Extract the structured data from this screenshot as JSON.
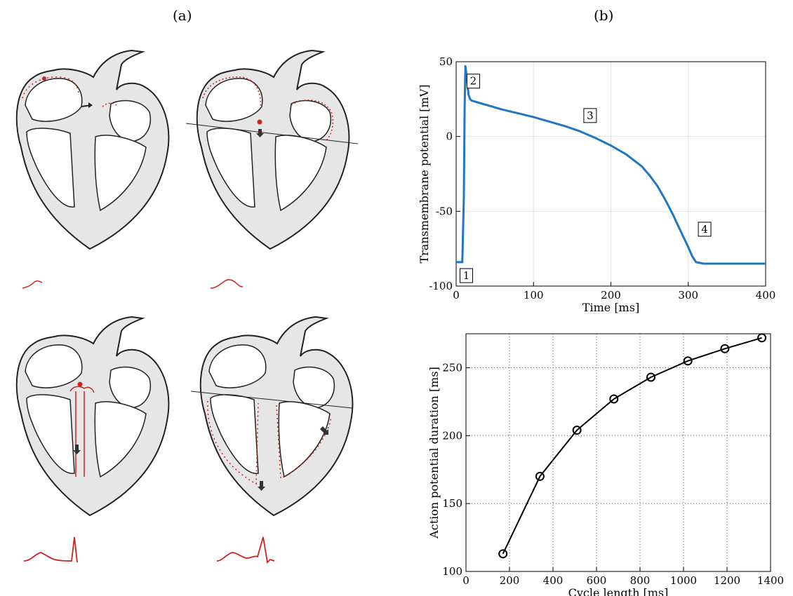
{
  "figure": {
    "panel_a_label": "(a)",
    "panel_b_label": "(b)"
  },
  "illustration": {
    "description_icons": [
      "heart-diagram-icon",
      "ecg-trace-icon"
    ],
    "colors": {
      "tissue": "#e6e6e6",
      "outline": "#222222",
      "activation": "#cc2222"
    }
  },
  "chart_data": [
    {
      "type": "line",
      "xlabel": "Time [ms]",
      "ylabel": "Transmembrane potential [mV]",
      "xlim": [
        0,
        400
      ],
      "ylim": [
        -100,
        50
      ],
      "xticks": [
        0,
        100,
        200,
        300,
        400
      ],
      "yticks": [
        -100,
        -50,
        0,
        50
      ],
      "grid": true,
      "color": "#1f77c4",
      "x": [
        0,
        8,
        10,
        11,
        12,
        14,
        16,
        18,
        20,
        40,
        60,
        80,
        100,
        120,
        140,
        160,
        180,
        200,
        220,
        240,
        250,
        260,
        270,
        280,
        290,
        300,
        305,
        310,
        320,
        340,
        360,
        380,
        400
      ],
      "y": [
        -84,
        -84,
        -40,
        20,
        47,
        38,
        28,
        25,
        24,
        21,
        18,
        15.5,
        13,
        10,
        7,
        3.5,
        -1,
        -6,
        -12,
        -20,
        -26,
        -33,
        -42,
        -52,
        -63,
        -74,
        -80,
        -84,
        -85,
        -85,
        -85,
        -85,
        -85
      ],
      "annotations": [
        {
          "label": "1",
          "x": 5,
          "y": -93
        },
        {
          "label": "2",
          "x": 14,
          "y": 37
        },
        {
          "label": "3",
          "x": 165,
          "y": 14
        },
        {
          "label": "4",
          "x": 313,
          "y": -62
        }
      ]
    },
    {
      "type": "line",
      "xlabel": "Cycle length [ms]",
      "ylabel": "Action potential duration [ms]",
      "xlim": [
        0,
        1400
      ],
      "ylim": [
        100,
        275
      ],
      "xticks": [
        0,
        200,
        400,
        600,
        800,
        1000,
        1200,
        1400
      ],
      "yticks": [
        100,
        150,
        200,
        250
      ],
      "grid": true,
      "grid_style": "dotted",
      "marker": "circle",
      "color": "#000000",
      "x": [
        170,
        340,
        510,
        680,
        850,
        1020,
        1190,
        1360
      ],
      "y": [
        113,
        170,
        204,
        227,
        243,
        255,
        264,
        272
      ]
    }
  ]
}
